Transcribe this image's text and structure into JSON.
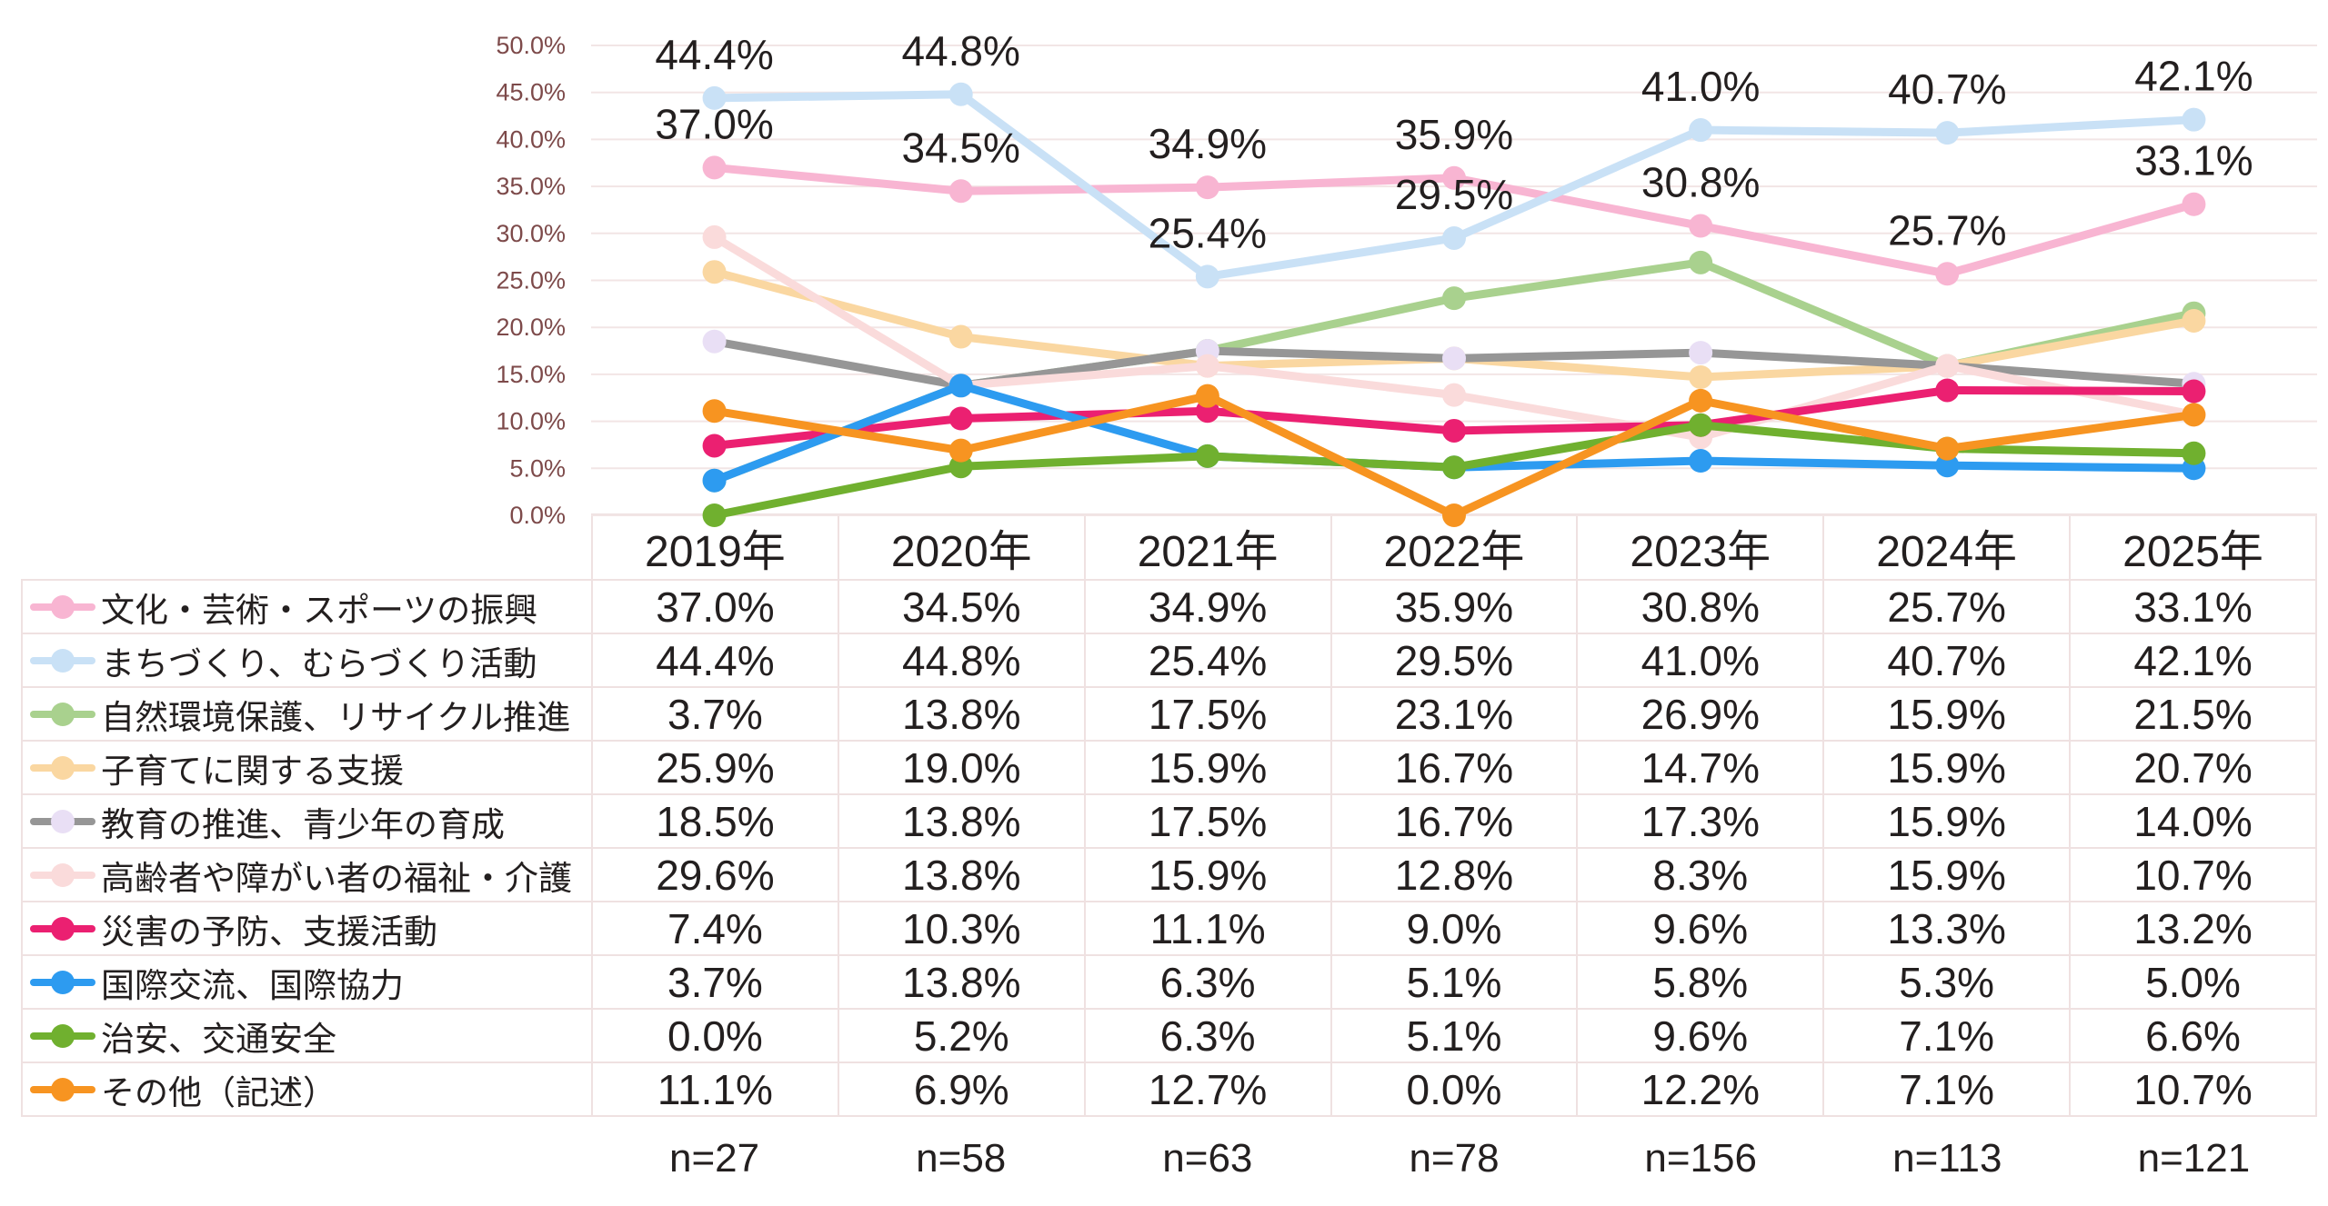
{
  "chart_data": {
    "type": "line",
    "title": "",
    "categories": [
      "2019年",
      "2020年",
      "2021年",
      "2022年",
      "2023年",
      "2024年",
      "2025年"
    ],
    "ylim": [
      0,
      50
    ],
    "ytick_step": 5,
    "ytick_labels": [
      "0.0%",
      "5.0%",
      "10.0%",
      "15.0%",
      "20.0%",
      "25.0%",
      "30.0%",
      "35.0%",
      "40.0%",
      "45.0%",
      "50.0%"
    ],
    "grid": true,
    "legend_position": "table-left-column",
    "value_suffix": "%",
    "series": [
      {
        "name": "文化・芸術・スポーツの振興",
        "color": "#f8b5d2",
        "values": [
          37.0,
          34.5,
          34.9,
          35.9,
          30.8,
          25.7,
          33.1
        ],
        "point_labels": true
      },
      {
        "name": "まちづくり、むらづくり活動",
        "color": "#c9e1f6",
        "values": [
          44.4,
          44.8,
          25.4,
          29.5,
          41.0,
          40.7,
          42.1
        ],
        "point_labels": true
      },
      {
        "name": "自然環境保護、リサイクル推進",
        "color": "#a9d18e",
        "values": [
          3.7,
          13.8,
          17.5,
          23.1,
          26.9,
          15.9,
          21.5
        ],
        "point_labels": false
      },
      {
        "name": "子育てに関する支援",
        "color": "#fad7a1",
        "values": [
          25.9,
          19.0,
          15.9,
          16.7,
          14.7,
          15.9,
          20.7
        ],
        "point_labels": false
      },
      {
        "name": "教育の推進、青少年の育成",
        "color": "#969696",
        "marker_color": "#e9dff5",
        "values": [
          18.5,
          13.8,
          17.5,
          16.7,
          17.3,
          15.9,
          14.0
        ],
        "point_labels": false
      },
      {
        "name": "高齢者や障がい者の福祉・介護",
        "color": "#fadbdb",
        "values": [
          29.6,
          13.8,
          15.9,
          12.8,
          8.3,
          15.9,
          10.7
        ],
        "point_labels": false
      },
      {
        "name": "災害の予防、支援活動",
        "color": "#eb2071",
        "values": [
          7.4,
          10.3,
          11.1,
          9.0,
          9.6,
          13.3,
          13.2
        ],
        "point_labels": false
      },
      {
        "name": "国際交流、国際協力",
        "color": "#2d9bf0",
        "values": [
          3.7,
          13.8,
          6.3,
          5.1,
          5.8,
          5.3,
          5.0
        ],
        "point_labels": false
      },
      {
        "name": "治安、交通安全",
        "color": "#70b02f",
        "values": [
          0.0,
          5.2,
          6.3,
          5.1,
          9.6,
          7.1,
          6.6
        ],
        "point_labels": false
      },
      {
        "name": "その他（記述）",
        "color": "#f79421",
        "values": [
          11.1,
          6.9,
          12.7,
          0.0,
          12.2,
          7.1,
          10.7
        ],
        "point_labels": false
      }
    ]
  },
  "table": {
    "corner_label": "",
    "sample_sizes": [
      "n=27",
      "n=58",
      "n=63",
      "n=78",
      "n=156",
      "n=113",
      "n=121"
    ]
  },
  "styles": {
    "background": "#ffffff",
    "grid_color": "#f2e5e5",
    "axis_tick_color": "#7d4a4a",
    "table_border_color": "#efe1e1",
    "text_color": "#231f1f"
  }
}
